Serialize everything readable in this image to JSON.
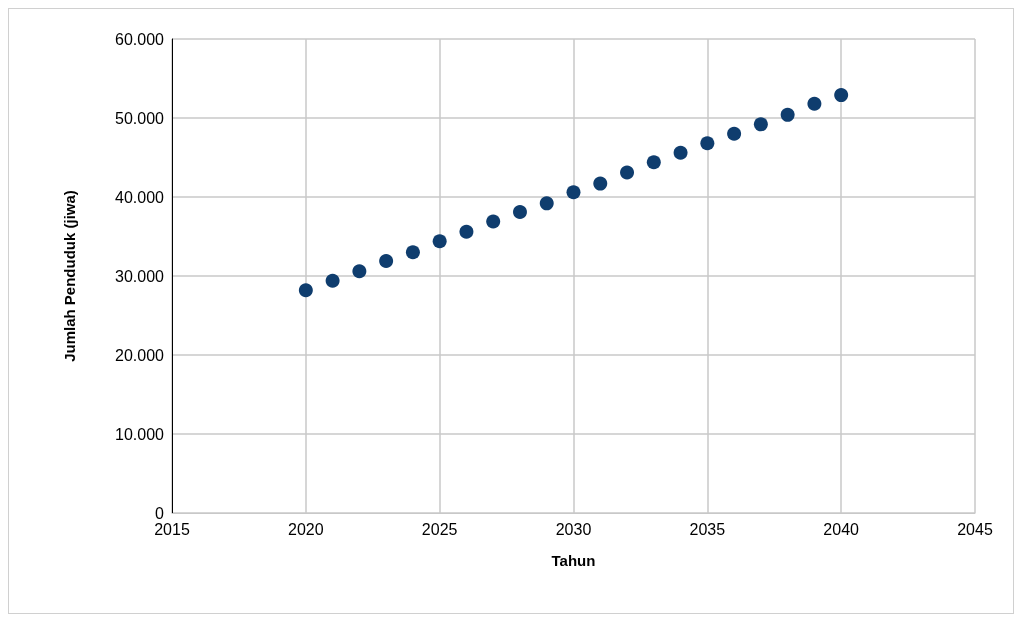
{
  "chart_data": {
    "type": "scatter",
    "xlabel": "Tahun",
    "ylabel": "Jumlah Penduduk (jiwa)",
    "x": [
      2020,
      2021,
      2022,
      2023,
      2024,
      2025,
      2026,
      2027,
      2028,
      2029,
      2030,
      2031,
      2032,
      2033,
      2034,
      2035,
      2036,
      2037,
      2038,
      2039,
      2040
    ],
    "series": [
      {
        "color": "#0f3d6e",
        "values": [
          28200,
          29400,
          30600,
          31900,
          33000,
          34400,
          35600,
          36900,
          38100,
          39200,
          40600,
          41700,
          43100,
          44400,
          45600,
          46800,
          48000,
          49200,
          50400,
          51800,
          52900
        ]
      }
    ],
    "xlim": [
      2015,
      2045
    ],
    "xticks": [
      2015,
      2020,
      2025,
      2030,
      2035,
      2040,
      2045
    ],
    "ylim": [
      0,
      60000
    ],
    "yticks": [
      0,
      {
        "value": 10000,
        "label": "10.000"
      },
      {
        "value": 20000,
        "label": "20.000"
      },
      {
        "value": 30000,
        "label": "30.000"
      },
      {
        "value": 40000,
        "label": "40.000"
      },
      {
        "value": 50000,
        "label": "50.000"
      },
      {
        "value": 60000,
        "label": "60.000"
      }
    ],
    "grid": true,
    "marker": "circle"
  }
}
